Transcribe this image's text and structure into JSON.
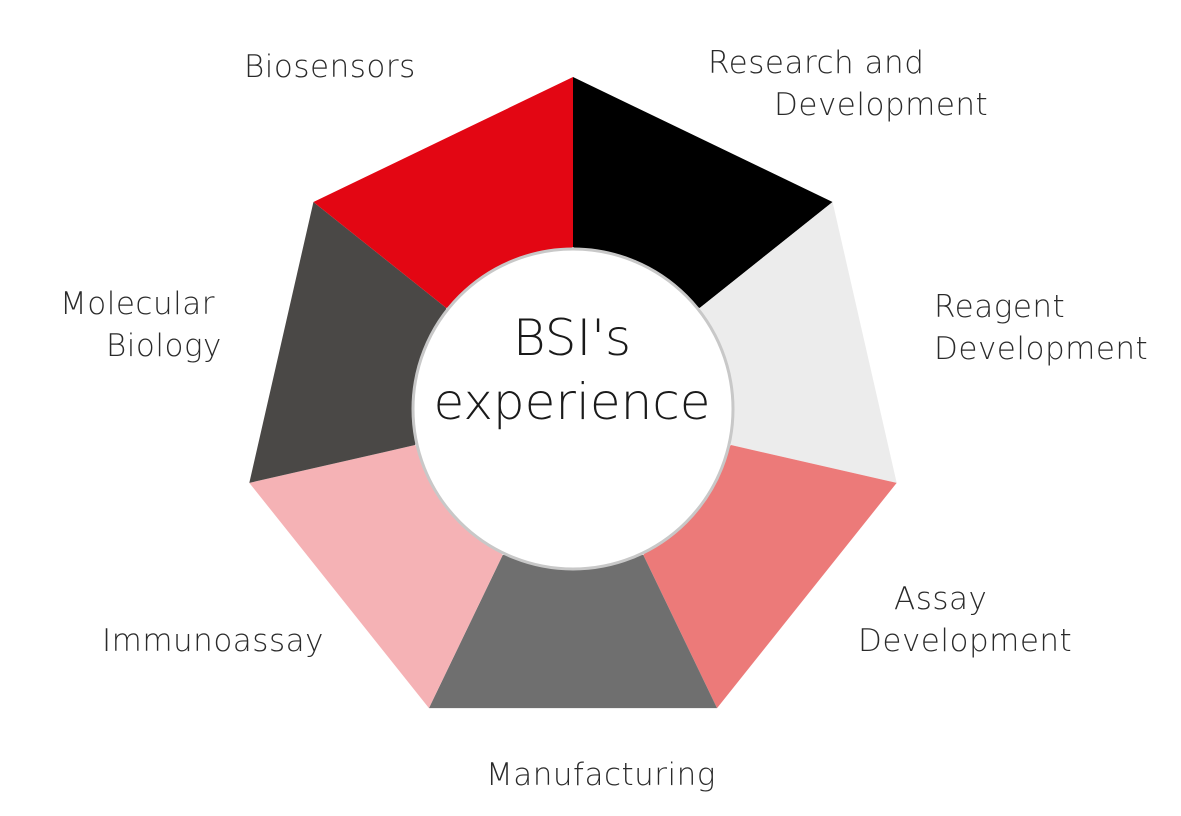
{
  "center": {
    "line1": "BSI's",
    "line2": "experience"
  },
  "segments": [
    {
      "id": "rnd",
      "lines": [
        "Research and",
        "Development"
      ],
      "color": "#000000"
    },
    {
      "id": "reagent",
      "lines": [
        "Reagent",
        "Development"
      ],
      "color": "#ececec"
    },
    {
      "id": "assay",
      "lines": [
        "Assay",
        "Development"
      ],
      "color": "#ec7a79"
    },
    {
      "id": "manufacturing",
      "lines": [
        "Manufacturing"
      ],
      "color": "#6f6f6f"
    },
    {
      "id": "immunoassay",
      "lines": [
        "Immunoassay"
      ],
      "color": "#f5b2b5"
    },
    {
      "id": "molecular",
      "lines": [
        "Molecular",
        "Biology"
      ],
      "color": "#4a4846"
    },
    {
      "id": "biosensors",
      "lines": [
        "Biosensors"
      ],
      "color": "#e30613"
    }
  ],
  "colors": {
    "center_fill": "#ffffff",
    "center_stroke": "#c8c8c8"
  }
}
